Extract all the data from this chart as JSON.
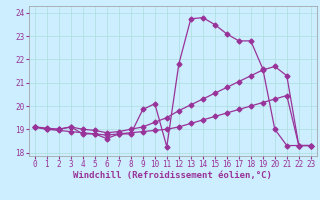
{
  "xlabel": "Windchill (Refroidissement éolien,°C)",
  "background_color": "#cceeff",
  "line_color": "#993399",
  "xlim": [
    -0.5,
    23.5
  ],
  "ylim": [
    17.85,
    24.3
  ],
  "yticks": [
    18,
    19,
    20,
    21,
    22,
    23,
    24
  ],
  "xticks": [
    0,
    1,
    2,
    3,
    4,
    5,
    6,
    7,
    8,
    9,
    10,
    11,
    12,
    13,
    14,
    15,
    16,
    17,
    18,
    19,
    20,
    21,
    22,
    23
  ],
  "series1_x": [
    0,
    1,
    2,
    3,
    4,
    5,
    6,
    7,
    8,
    9,
    10,
    11,
    12,
    13,
    14,
    15,
    16,
    17,
    18,
    19,
    20,
    21,
    22,
    23
  ],
  "series1_y": [
    19.1,
    19.0,
    19.0,
    19.1,
    18.8,
    18.8,
    18.6,
    18.8,
    18.8,
    19.85,
    20.1,
    18.25,
    21.8,
    23.75,
    23.8,
    23.5,
    23.1,
    22.8,
    22.8,
    21.6,
    19.0,
    18.3,
    18.3,
    18.3
  ],
  "series2_x": [
    0,
    1,
    2,
    3,
    4,
    5,
    6,
    7,
    8,
    9,
    10,
    11,
    12,
    13,
    14,
    15,
    16,
    17,
    18,
    19,
    20,
    21,
    22,
    23
  ],
  "series2_y": [
    19.1,
    19.05,
    19.0,
    19.1,
    19.0,
    18.95,
    18.85,
    18.9,
    19.0,
    19.1,
    19.3,
    19.5,
    19.8,
    20.05,
    20.3,
    20.55,
    20.8,
    21.05,
    21.3,
    21.55,
    21.7,
    21.3,
    18.3,
    18.3
  ],
  "series3_x": [
    0,
    1,
    2,
    3,
    4,
    5,
    6,
    7,
    8,
    9,
    10,
    11,
    12,
    13,
    14,
    15,
    16,
    17,
    18,
    19,
    20,
    21,
    22,
    23
  ],
  "series3_y": [
    19.1,
    19.0,
    18.95,
    18.9,
    18.85,
    18.8,
    18.75,
    18.8,
    18.85,
    18.9,
    18.95,
    19.0,
    19.1,
    19.25,
    19.4,
    19.55,
    19.7,
    19.85,
    20.0,
    20.15,
    20.3,
    20.45,
    18.3,
    18.3
  ],
  "grid_color": "#aadddd",
  "tick_color": "#993399",
  "tick_fontsize": 5.5,
  "label_fontsize": 6.5,
  "linewidth": 0.9,
  "markersize": 2.5
}
